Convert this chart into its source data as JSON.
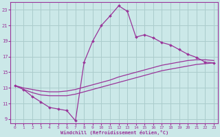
{
  "xlabel": "Windchill (Refroidissement éolien,°C)",
  "bg_color": "#cbe8e8",
  "grid_color": "#aacccc",
  "line_color": "#993399",
  "marker_color": "#993399",
  "xlim": [
    -0.5,
    23.5
  ],
  "ylim": [
    8.5,
    24.0
  ],
  "xticks": [
    0,
    1,
    2,
    3,
    4,
    5,
    6,
    7,
    8,
    9,
    10,
    11,
    12,
    13,
    14,
    15,
    16,
    17,
    18,
    19,
    20,
    21,
    22,
    23
  ],
  "yticks": [
    9,
    11,
    13,
    15,
    17,
    19,
    21,
    23
  ],
  "curve1_x": [
    0,
    1,
    2,
    3,
    4,
    5,
    6,
    7,
    8,
    9,
    10,
    11,
    12,
    13,
    14,
    15,
    16,
    17,
    18,
    19,
    20,
    21,
    22,
    23
  ],
  "curve1_y": [
    13.3,
    12.8,
    11.9,
    11.2,
    10.5,
    10.3,
    10.1,
    8.8,
    16.3,
    19.0,
    21.0,
    22.2,
    23.5,
    22.8,
    19.5,
    19.8,
    19.4,
    18.8,
    18.5,
    17.9,
    17.3,
    16.9,
    16.3,
    16.2
  ],
  "curve2_x": [
    0,
    1,
    2,
    3,
    4,
    5,
    6,
    7,
    8,
    9,
    10,
    11,
    12,
    13,
    14,
    15,
    16,
    17,
    18,
    19,
    20,
    21,
    22,
    23
  ],
  "curve2_y": [
    13.3,
    12.8,
    12.4,
    12.1,
    12.0,
    12.0,
    12.0,
    12.2,
    12.5,
    12.8,
    13.1,
    13.4,
    13.7,
    14.0,
    14.3,
    14.6,
    14.9,
    15.2,
    15.4,
    15.6,
    15.8,
    16.0,
    16.1,
    16.2
  ],
  "curve3_x": [
    0,
    1,
    2,
    3,
    4,
    5,
    6,
    7,
    8,
    9,
    10,
    11,
    12,
    13,
    14,
    15,
    16,
    17,
    18,
    19,
    20,
    21,
    22,
    23
  ],
  "curve3_y": [
    13.3,
    13.0,
    12.8,
    12.6,
    12.5,
    12.5,
    12.6,
    12.8,
    13.1,
    13.4,
    13.7,
    14.0,
    14.4,
    14.7,
    15.0,
    15.3,
    15.6,
    15.9,
    16.1,
    16.3,
    16.5,
    16.6,
    16.6,
    16.5
  ]
}
